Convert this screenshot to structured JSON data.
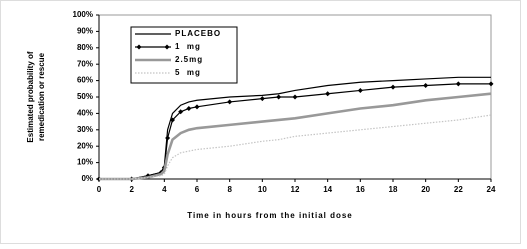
{
  "chart_data": {
    "type": "line",
    "y_label": [
      "Estimated probability of",
      "remedication or rescue"
    ],
    "x_label": "Time in hours from the initial dose",
    "x": [
      0,
      2,
      3,
      3.8,
      4,
      4.2,
      4.5,
      5,
      5.5,
      6,
      8,
      10,
      11,
      12,
      14,
      16,
      18,
      20,
      22,
      24
    ],
    "series": [
      {
        "name": "PLACEBO",
        "color": "#000000",
        "line_style": "solid",
        "values": [
          0,
          0,
          2,
          4,
          8,
          30,
          40,
          45,
          47,
          48,
          50,
          51,
          52,
          54,
          57,
          59,
          60,
          61,
          62,
          62
        ]
      },
      {
        "name": "1  mg",
        "color": "#000000",
        "line_style": "solid",
        "marker": "diamond",
        "values": [
          0,
          0,
          2,
          4,
          7,
          25,
          36,
          41,
          43,
          44,
          47,
          49,
          50,
          50,
          52,
          54,
          56,
          57,
          58,
          58
        ]
      },
      {
        "name": "2.5mg",
        "color": "#999999",
        "line_style": "thick",
        "values": [
          0,
          0,
          1,
          3,
          5,
          15,
          24,
          28,
          30,
          31,
          33,
          35,
          36,
          37,
          40,
          43,
          45,
          48,
          50,
          52
        ]
      },
      {
        "name": "5  mg",
        "color": "#c4c4c4",
        "line_style": "dotted",
        "values": [
          0,
          0,
          1,
          2,
          3,
          8,
          13,
          16,
          17,
          18,
          20,
          23,
          24,
          26,
          28,
          30,
          32,
          34,
          36,
          39
        ]
      }
    ],
    "xlim": [
      0,
      24
    ],
    "xticks": [
      0,
      2,
      4,
      6,
      8,
      10,
      12,
      14,
      16,
      18,
      20,
      22,
      24
    ],
    "ylim": [
      0,
      100
    ],
    "yticks": [
      {
        "value": 0,
        "label": "0%"
      },
      {
        "value": 10,
        "label": "10%"
      },
      {
        "value": 20,
        "label": "20%"
      },
      {
        "value": 30,
        "label": "30%"
      },
      {
        "value": 40,
        "label": "40%"
      },
      {
        "value": 50,
        "label": "50%"
      },
      {
        "value": 60,
        "label": "60%"
      },
      {
        "value": 70,
        "label": "70%"
      },
      {
        "value": 80,
        "label": "80%"
      },
      {
        "value": 90,
        "label": "90%"
      },
      {
        "value": 100,
        "label": "100%"
      }
    ],
    "grid": false
  }
}
